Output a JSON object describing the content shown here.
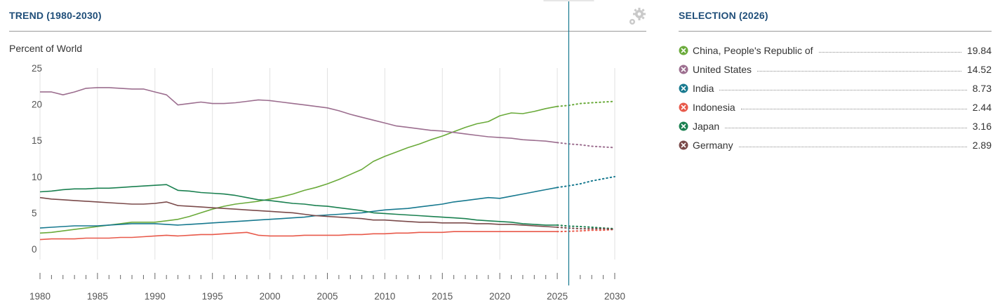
{
  "header": {
    "trend_title": "TREND (1980-2030)",
    "selection_title": "SELECTION (2026)"
  },
  "icons": {
    "settings": "gear-icon",
    "legend_marker": "x-circle-icon"
  },
  "chart_data": {
    "type": "line",
    "ylabel": "Percent of World",
    "ylim": [
      0,
      25
    ],
    "yticks": [
      "0",
      "5",
      "10",
      "15",
      "20",
      "25"
    ],
    "xlim": [
      1980,
      2030
    ],
    "xticks": [
      "1980",
      "1985",
      "1990",
      "1995",
      "2000",
      "2005",
      "2010",
      "2015",
      "2020",
      "2025",
      "2030"
    ],
    "grid": "vertical",
    "selected_year": 2026,
    "projection_start": 2025,
    "x": [
      1980,
      1981,
      1982,
      1983,
      1984,
      1985,
      1986,
      1987,
      1988,
      1989,
      1990,
      1991,
      1992,
      1993,
      1994,
      1995,
      1996,
      1997,
      1998,
      1999,
      2000,
      2001,
      2002,
      2003,
      2004,
      2005,
      2006,
      2007,
      2008,
      2009,
      2010,
      2011,
      2012,
      2013,
      2014,
      2015,
      2016,
      2017,
      2018,
      2019,
      2020,
      2021,
      2022,
      2023,
      2024,
      2025,
      2026,
      2027,
      2028,
      2029,
      2030
    ],
    "series": [
      {
        "name": "China, People's Republic of",
        "color": "#6aaa3a",
        "values": [
          2.2,
          2.3,
          2.5,
          2.7,
          2.9,
          3.1,
          3.3,
          3.5,
          3.7,
          3.7,
          3.7,
          3.9,
          4.1,
          4.5,
          5.0,
          5.5,
          5.9,
          6.2,
          6.4,
          6.6,
          6.9,
          7.2,
          7.6,
          8.1,
          8.5,
          9.0,
          9.6,
          10.3,
          11.0,
          12.1,
          12.8,
          13.4,
          14.0,
          14.5,
          15.1,
          15.6,
          16.2,
          16.8,
          17.3,
          17.6,
          18.4,
          18.8,
          18.7,
          19.0,
          19.4,
          19.7,
          19.84,
          20.1,
          20.2,
          20.3,
          20.4
        ]
      },
      {
        "name": "United States",
        "color": "#9c6e8f",
        "values": [
          21.7,
          21.7,
          21.3,
          21.7,
          22.2,
          22.3,
          22.3,
          22.2,
          22.1,
          22.1,
          21.7,
          21.3,
          19.9,
          20.1,
          20.3,
          20.1,
          20.1,
          20.2,
          20.4,
          20.6,
          20.5,
          20.3,
          20.1,
          19.9,
          19.7,
          19.5,
          19.1,
          18.6,
          18.2,
          17.8,
          17.4,
          17.0,
          16.8,
          16.6,
          16.4,
          16.3,
          16.1,
          15.9,
          15.7,
          15.5,
          15.4,
          15.3,
          15.1,
          15.0,
          14.9,
          14.7,
          14.52,
          14.4,
          14.2,
          14.1,
          14.0
        ]
      },
      {
        "name": "India",
        "color": "#17798f",
        "values": [
          2.9,
          3.0,
          3.1,
          3.2,
          3.2,
          3.2,
          3.3,
          3.4,
          3.5,
          3.5,
          3.5,
          3.4,
          3.3,
          3.4,
          3.5,
          3.6,
          3.7,
          3.8,
          3.9,
          4.0,
          4.1,
          4.2,
          4.3,
          4.4,
          4.6,
          4.7,
          4.8,
          4.9,
          5.0,
          5.2,
          5.4,
          5.5,
          5.6,
          5.8,
          6.0,
          6.2,
          6.5,
          6.7,
          6.9,
          7.1,
          7.0,
          7.3,
          7.6,
          7.9,
          8.2,
          8.5,
          8.73,
          9.0,
          9.4,
          9.7,
          10.0
        ]
      },
      {
        "name": "Indonesia",
        "color": "#e8594a",
        "values": [
          1.3,
          1.4,
          1.4,
          1.4,
          1.5,
          1.5,
          1.5,
          1.6,
          1.6,
          1.7,
          1.8,
          1.9,
          1.8,
          1.9,
          2.0,
          2.0,
          2.1,
          2.2,
          2.3,
          1.9,
          1.8,
          1.8,
          1.8,
          1.9,
          1.9,
          1.9,
          1.9,
          2.0,
          2.0,
          2.1,
          2.1,
          2.2,
          2.2,
          2.3,
          2.3,
          2.3,
          2.4,
          2.4,
          2.4,
          2.4,
          2.4,
          2.4,
          2.4,
          2.4,
          2.4,
          2.4,
          2.44,
          2.5,
          2.6,
          2.6,
          2.7
        ]
      },
      {
        "name": "Japan",
        "color": "#1a8050",
        "values": [
          7.9,
          8.0,
          8.2,
          8.3,
          8.3,
          8.4,
          8.4,
          8.5,
          8.6,
          8.7,
          8.8,
          8.9,
          8.1,
          8.0,
          7.8,
          7.7,
          7.6,
          7.4,
          7.1,
          6.8,
          6.7,
          6.5,
          6.3,
          6.2,
          6.0,
          5.9,
          5.7,
          5.5,
          5.3,
          5.0,
          4.9,
          4.8,
          4.7,
          4.6,
          4.5,
          4.4,
          4.3,
          4.2,
          4.0,
          3.9,
          3.8,
          3.7,
          3.5,
          3.4,
          3.3,
          3.3,
          3.16,
          3.1,
          3.0,
          2.9,
          2.8
        ]
      },
      {
        "name": "Germany",
        "color": "#7a4a4a",
        "values": [
          7.1,
          6.9,
          6.8,
          6.7,
          6.6,
          6.5,
          6.4,
          6.3,
          6.2,
          6.2,
          6.3,
          6.5,
          6.0,
          5.9,
          5.8,
          5.7,
          5.6,
          5.5,
          5.4,
          5.3,
          5.2,
          5.1,
          5.0,
          4.8,
          4.6,
          4.5,
          4.4,
          4.3,
          4.2,
          4.0,
          4.0,
          3.9,
          3.8,
          3.7,
          3.7,
          3.6,
          3.6,
          3.6,
          3.5,
          3.5,
          3.4,
          3.4,
          3.3,
          3.2,
          3.1,
          3.0,
          2.89,
          2.8,
          2.8,
          2.8,
          2.7
        ]
      }
    ]
  },
  "selection": {
    "items": [
      {
        "name": "China, People's Republic of",
        "value": "19.84",
        "color": "#6aaa3a"
      },
      {
        "name": "United States",
        "value": "14.52",
        "color": "#9c6e8f"
      },
      {
        "name": "India",
        "value": "8.73",
        "color": "#17798f"
      },
      {
        "name": "Indonesia",
        "value": "2.44",
        "color": "#e8594a"
      },
      {
        "name": "Japan",
        "value": "3.16",
        "color": "#1a8050"
      },
      {
        "name": "Germany",
        "value": "2.89",
        "color": "#7a4a4a"
      }
    ]
  }
}
